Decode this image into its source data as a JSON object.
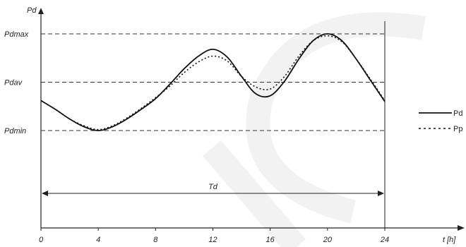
{
  "chart_data": {
    "type": "line",
    "x_ticks": [
      0,
      4,
      8,
      12,
      16,
      20,
      24
    ],
    "xlim": [
      0,
      24
    ],
    "axis_labels": {
      "y": "Pd",
      "x": "t [h]"
    },
    "levels": [
      {
        "label": "Pdmax",
        "value": 1.0
      },
      {
        "label": "Pdav",
        "value": 0.5
      },
      {
        "label": "Pdmin",
        "value": 0.0
      }
    ],
    "span_annotation": {
      "label": "Td",
      "from": 0,
      "to": 24
    },
    "series": [
      {
        "name": "Pd",
        "style": "solid",
        "x": [
          0,
          1,
          2,
          3,
          4,
          5,
          6,
          7,
          8,
          9,
          10,
          11,
          12,
          13,
          14,
          15,
          16,
          17,
          18,
          19,
          20,
          21,
          22,
          23,
          24
        ],
        "y": [
          0.31,
          0.22,
          0.12,
          0.04,
          0.0,
          0.04,
          0.12,
          0.22,
          0.33,
          0.48,
          0.64,
          0.77,
          0.84,
          0.76,
          0.56,
          0.38,
          0.36,
          0.51,
          0.74,
          0.93,
          1.0,
          0.93,
          0.74,
          0.52,
          0.3
        ]
      },
      {
        "name": "Pp",
        "style": "dotted",
        "x": [
          0,
          1,
          2,
          3,
          4,
          5,
          6,
          7,
          8,
          9,
          10,
          11,
          12,
          13,
          14,
          15,
          16,
          17,
          18,
          19,
          20,
          21,
          22,
          23,
          24
        ],
        "y": [
          0.31,
          0.22,
          0.12,
          0.05,
          0.01,
          0.05,
          0.13,
          0.23,
          0.34,
          0.46,
          0.6,
          0.71,
          0.77,
          0.72,
          0.56,
          0.45,
          0.43,
          0.56,
          0.77,
          0.93,
          0.98,
          0.92,
          0.74,
          0.53,
          0.31
        ]
      }
    ],
    "legend_position": "right",
    "colors": {
      "line": "#111111",
      "axis": "#222222",
      "dashed": "#333333"
    }
  }
}
